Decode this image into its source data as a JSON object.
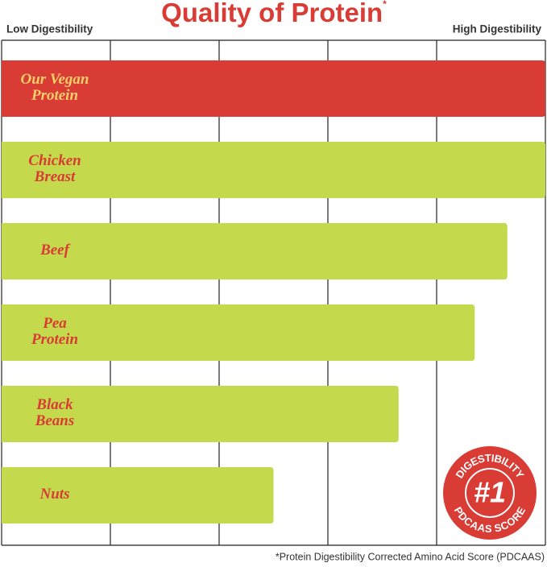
{
  "chart_data": {
    "type": "bar",
    "orientation": "horizontal",
    "title": "Quality of Protein",
    "title_mark": "*",
    "low_label": "Low Digestibility",
    "high_label": "High Digestibility",
    "categories": [
      [
        "Our Vegan",
        "Protein"
      ],
      [
        "Chicken",
        "Breast"
      ],
      [
        "Beef"
      ],
      [
        "Pea",
        "Protein"
      ],
      [
        "Black",
        "Beans"
      ],
      [
        "Nuts"
      ]
    ],
    "values": [
      1,
      1,
      0.93,
      0.87,
      0.73,
      0.5
    ],
    "colors": [
      "#d93b35",
      "#c4d94b",
      "#c4d94b",
      "#c4d94b",
      "#c4d94b",
      "#c4d94b"
    ],
    "label_colors": [
      "#f3cf6a",
      "#d93b35",
      "#d93b35",
      "#d93b35",
      "#d93b35",
      "#d93b35"
    ],
    "xlim": [
      0,
      1
    ],
    "xticks": [
      0,
      0.2,
      0.4,
      0.6,
      0.8,
      1
    ],
    "grid": true,
    "badge": {
      "top": "DIGESTIBILITY",
      "number": "#1",
      "bottom": "PDCAAS SCORE"
    },
    "footnote": "*Protein Digestibility Corrected Amino Acid Score (PDCAAS)"
  }
}
